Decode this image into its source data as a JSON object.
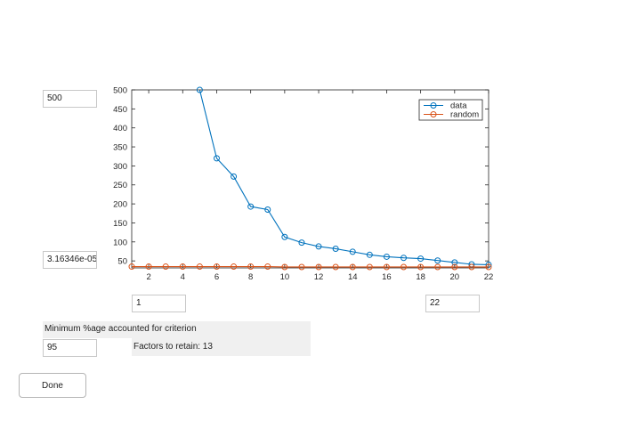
{
  "controls": {
    "ymax_value": "500",
    "ymin_value": "3.16346e-05",
    "xmin_value": "1",
    "xmax_value": "22",
    "criterion_label": "Minimum %age accounted for criterion",
    "criterion_value": "95",
    "factors_text": "Factors to retain: 13",
    "done_label": "Done"
  },
  "colors": {
    "data": "#0072bd",
    "random": "#d95319"
  },
  "chart_data": {
    "type": "line",
    "title": "",
    "xlabel": "",
    "ylabel": "",
    "xlim": [
      1,
      22
    ],
    "ylim": [
      31.6,
      500
    ],
    "x_ticks": [
      2,
      4,
      6,
      8,
      10,
      12,
      14,
      16,
      18,
      20,
      22
    ],
    "y_ticks": [
      50,
      100,
      150,
      200,
      250,
      300,
      350,
      400,
      450,
      500
    ],
    "grid": false,
    "legend_position": "top-right",
    "x": [
      1,
      2,
      3,
      4,
      5,
      6,
      7,
      8,
      9,
      10,
      11,
      12,
      13,
      14,
      15,
      16,
      17,
      18,
      19,
      20,
      21,
      22
    ],
    "series": [
      {
        "name": "data",
        "color": "#0072bd",
        "values": [
          null,
          null,
          null,
          null,
          500,
          320,
          272,
          193,
          185,
          113,
          98,
          88,
          82,
          74,
          66,
          61,
          58,
          56,
          51,
          46,
          41,
          40
        ]
      },
      {
        "name": "random",
        "color": "#d95319",
        "values": [
          35,
          35,
          35,
          35,
          35,
          35,
          35,
          35,
          35,
          34,
          34,
          34,
          34,
          34,
          34,
          34,
          34,
          34,
          34,
          34,
          34,
          34
        ]
      }
    ]
  }
}
